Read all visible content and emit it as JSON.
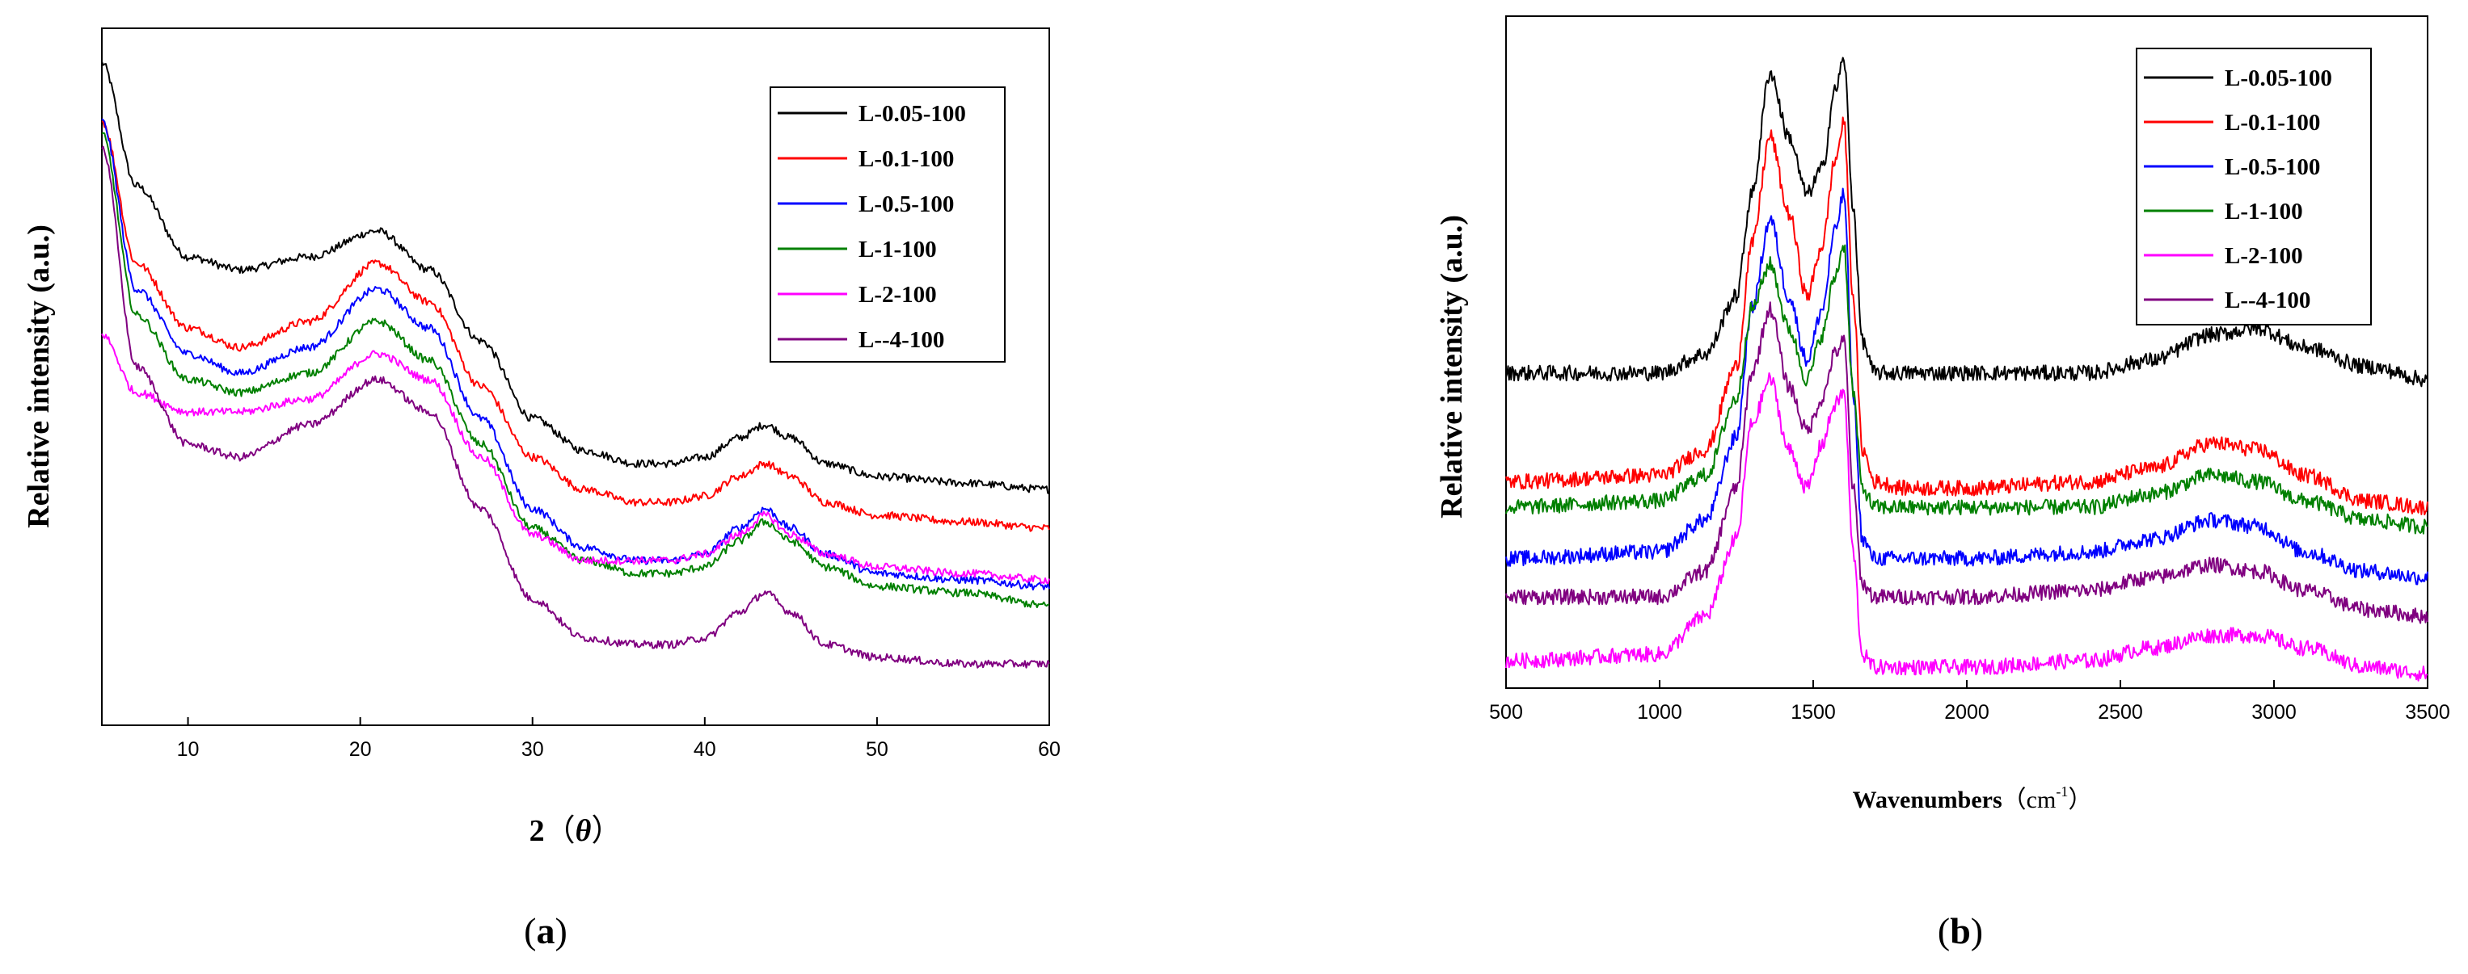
{
  "chart_data": [
    {
      "type": "line",
      "panel_label": "(a)",
      "panel_letter": "a",
      "title": "",
      "xlabel": "2",
      "xlabel_symbol": "θ",
      "ylabel": "Relative intensity (a.u.)",
      "xlim": [
        5,
        60
      ],
      "ylim": [
        0,
        1
      ],
      "xticks": [
        "10",
        "20",
        "30",
        "40",
        "50",
        "60"
      ],
      "xtick_values": [
        10,
        20,
        30,
        40,
        50,
        60
      ],
      "legend_position": "top-right",
      "series": [
        {
          "name": "L-0.05-100",
          "color": "#000000",
          "x": [
            5,
            7,
            10,
            13,
            17,
            21,
            24,
            27,
            30,
            33,
            36,
            38,
            40,
            42,
            43.5,
            45,
            47,
            50,
            55,
            60
          ],
          "values": [
            0.99,
            0.8,
            0.69,
            0.67,
            0.69,
            0.73,
            0.67,
            0.56,
            0.44,
            0.39,
            0.37,
            0.37,
            0.38,
            0.41,
            0.43,
            0.41,
            0.37,
            0.35,
            0.34,
            0.33
          ]
        },
        {
          "name": "L-0.1-100",
          "color": "#ff0000",
          "x": [
            5,
            7,
            10,
            13,
            17,
            21,
            24,
            27,
            30,
            33,
            36,
            38,
            40,
            42,
            43.5,
            45,
            47,
            50,
            55,
            60
          ],
          "values": [
            0.9,
            0.68,
            0.58,
            0.55,
            0.59,
            0.68,
            0.62,
            0.49,
            0.38,
            0.33,
            0.31,
            0.31,
            0.32,
            0.35,
            0.37,
            0.35,
            0.31,
            0.29,
            0.28,
            0.27
          ]
        },
        {
          "name": "L-0.5-100",
          "color": "#0000ff",
          "x": [
            5,
            7,
            10,
            13,
            17,
            21,
            24,
            27,
            30,
            33,
            36,
            38,
            40,
            42,
            43.5,
            45,
            47,
            50,
            55,
            60
          ],
          "values": [
            0.9,
            0.64,
            0.54,
            0.51,
            0.55,
            0.64,
            0.58,
            0.44,
            0.3,
            0.24,
            0.22,
            0.22,
            0.23,
            0.27,
            0.3,
            0.27,
            0.23,
            0.2,
            0.19,
            0.18
          ]
        },
        {
          "name": "L-1-100",
          "color": "#008000",
          "x": [
            5,
            7,
            10,
            13,
            17,
            21,
            24,
            27,
            30,
            33,
            36,
            38,
            40,
            42,
            43.5,
            45,
            47,
            50,
            55,
            60
          ],
          "values": [
            0.88,
            0.6,
            0.5,
            0.48,
            0.51,
            0.59,
            0.53,
            0.4,
            0.27,
            0.22,
            0.2,
            0.2,
            0.21,
            0.25,
            0.28,
            0.25,
            0.21,
            0.18,
            0.17,
            0.15
          ]
        },
        {
          "name": "L-2-100",
          "color": "#ff00ff",
          "x": [
            5,
            7,
            10,
            13,
            17,
            21,
            24,
            27,
            30,
            33,
            36,
            38,
            40,
            42,
            43.5,
            45,
            47,
            50,
            55,
            60
          ],
          "values": [
            0.57,
            0.48,
            0.45,
            0.45,
            0.47,
            0.54,
            0.5,
            0.38,
            0.26,
            0.22,
            0.22,
            0.22,
            0.23,
            0.26,
            0.29,
            0.26,
            0.23,
            0.21,
            0.2,
            0.19
          ]
        },
        {
          "name": "L--4-100",
          "color": "#800080",
          "x": [
            5,
            7,
            10,
            13,
            17,
            21,
            24,
            27,
            30,
            33,
            36,
            38,
            40,
            42,
            43.5,
            45,
            47,
            50,
            55,
            60
          ],
          "values": [
            0.86,
            0.52,
            0.4,
            0.38,
            0.43,
            0.5,
            0.45,
            0.3,
            0.16,
            0.1,
            0.09,
            0.09,
            0.1,
            0.14,
            0.17,
            0.14,
            0.09,
            0.07,
            0.06,
            0.06
          ]
        }
      ]
    },
    {
      "type": "line",
      "panel_label": "(b)",
      "panel_letter": "b",
      "title": "",
      "xlabel": "Wavenumbers",
      "xlabel_unit": "cm",
      "xlabel_unit_exp": "-1",
      "ylabel": "Relative intensity (a.u.)",
      "xlim": [
        500,
        3500
      ],
      "ylim": [
        0,
        1
      ],
      "xticks": [
        "500",
        "1000",
        "1500",
        "2000",
        "2500",
        "3000",
        "3500"
      ],
      "xtick_values": [
        500,
        1000,
        1500,
        2000,
        2500,
        3000,
        3500
      ],
      "legend_position": "top-right",
      "series": [
        {
          "name": "L-0.05-100",
          "color": "#000000",
          "x": [
            500,
            1000,
            1150,
            1250,
            1300,
            1360,
            1420,
            1480,
            1530,
            1570,
            1600,
            1630,
            1660,
            1700,
            1800,
            2000,
            2400,
            2600,
            2800,
            2950,
            3100,
            3300,
            3500
          ],
          "values": [
            0.48,
            0.48,
            0.51,
            0.6,
            0.76,
            0.95,
            0.85,
            0.76,
            0.8,
            0.92,
            0.97,
            0.74,
            0.53,
            0.48,
            0.48,
            0.48,
            0.48,
            0.5,
            0.54,
            0.55,
            0.52,
            0.49,
            0.47
          ]
        },
        {
          "name": "L-0.1-100",
          "color": "#ff0000",
          "x": [
            500,
            1000,
            1150,
            1250,
            1300,
            1360,
            1420,
            1480,
            1530,
            1570,
            1600,
            1630,
            1660,
            1700,
            1800,
            2000,
            2400,
            2600,
            2800,
            2950,
            3100,
            3300,
            3500
          ],
          "values": [
            0.31,
            0.32,
            0.36,
            0.49,
            0.68,
            0.85,
            0.73,
            0.6,
            0.68,
            0.81,
            0.87,
            0.6,
            0.36,
            0.31,
            0.3,
            0.3,
            0.31,
            0.33,
            0.37,
            0.36,
            0.32,
            0.28,
            0.27
          ]
        },
        {
          "name": "L-0.5-100",
          "color": "#0000ff",
          "x": [
            500,
            1000,
            1150,
            1250,
            1300,
            1360,
            1420,
            1480,
            1530,
            1570,
            1600,
            1630,
            1660,
            1700,
            1800,
            2000,
            2400,
            2600,
            2800,
            2950,
            3100,
            3300,
            3500
          ],
          "values": [
            0.19,
            0.2,
            0.25,
            0.38,
            0.58,
            0.72,
            0.6,
            0.5,
            0.58,
            0.7,
            0.76,
            0.45,
            0.22,
            0.19,
            0.19,
            0.19,
            0.2,
            0.22,
            0.25,
            0.24,
            0.2,
            0.17,
            0.16
          ]
        },
        {
          "name": "L-1-100",
          "color": "#008000",
          "x": [
            500,
            1000,
            1150,
            1250,
            1300,
            1360,
            1420,
            1480,
            1530,
            1570,
            1600,
            1630,
            1660,
            1700,
            1800,
            2000,
            2400,
            2600,
            2800,
            2950,
            3100,
            3300,
            3500
          ],
          "values": [
            0.27,
            0.28,
            0.32,
            0.44,
            0.58,
            0.65,
            0.55,
            0.47,
            0.54,
            0.63,
            0.68,
            0.45,
            0.3,
            0.27,
            0.27,
            0.27,
            0.27,
            0.29,
            0.32,
            0.31,
            0.28,
            0.25,
            0.24
          ]
        },
        {
          "name": "L-2-100",
          "color": "#ff00ff",
          "x": [
            500,
            1000,
            1150,
            1250,
            1300,
            1360,
            1420,
            1480,
            1530,
            1570,
            1600,
            1630,
            1660,
            1700,
            1800,
            2000,
            2400,
            2600,
            2800,
            2950,
            3100,
            3300,
            3500
          ],
          "values": [
            0.03,
            0.04,
            0.1,
            0.22,
            0.4,
            0.47,
            0.36,
            0.3,
            0.37,
            0.43,
            0.45,
            0.2,
            0.04,
            0.02,
            0.02,
            0.02,
            0.03,
            0.05,
            0.07,
            0.07,
            0.05,
            0.02,
            0.01
          ]
        },
        {
          "name": "L--4-100",
          "color": "#800080",
          "x": [
            500,
            1000,
            1150,
            1250,
            1300,
            1360,
            1420,
            1480,
            1530,
            1570,
            1600,
            1630,
            1660,
            1700,
            1800,
            2000,
            2400,
            2600,
            2800,
            2950,
            3100,
            3300,
            3500
          ],
          "values": [
            0.13,
            0.13,
            0.17,
            0.3,
            0.48,
            0.58,
            0.46,
            0.39,
            0.44,
            0.51,
            0.53,
            0.3,
            0.15,
            0.13,
            0.13,
            0.13,
            0.14,
            0.16,
            0.18,
            0.17,
            0.14,
            0.11,
            0.1
          ]
        }
      ]
    }
  ]
}
